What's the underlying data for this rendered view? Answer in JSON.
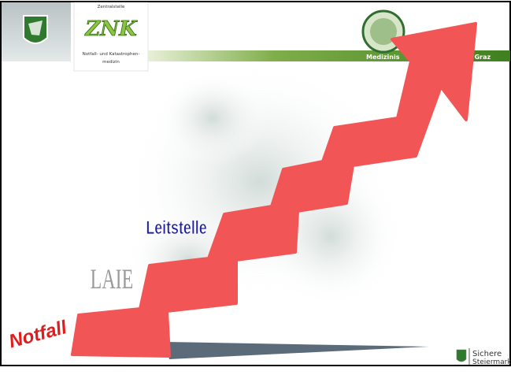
{
  "header": {
    "znk_top": "Zentralstelle",
    "znk_logo": "ZNK",
    "znk_sub": [
      "Notfall- und Katastrophen-",
      "medizin"
    ],
    "university": [
      "Medizinis",
      "t Graz"
    ]
  },
  "steps": {
    "first": "Notfall",
    "second": "LAIE",
    "third": "Leitstelle"
  },
  "footer": [
    "Sichere",
    "Steiermark"
  ]
}
